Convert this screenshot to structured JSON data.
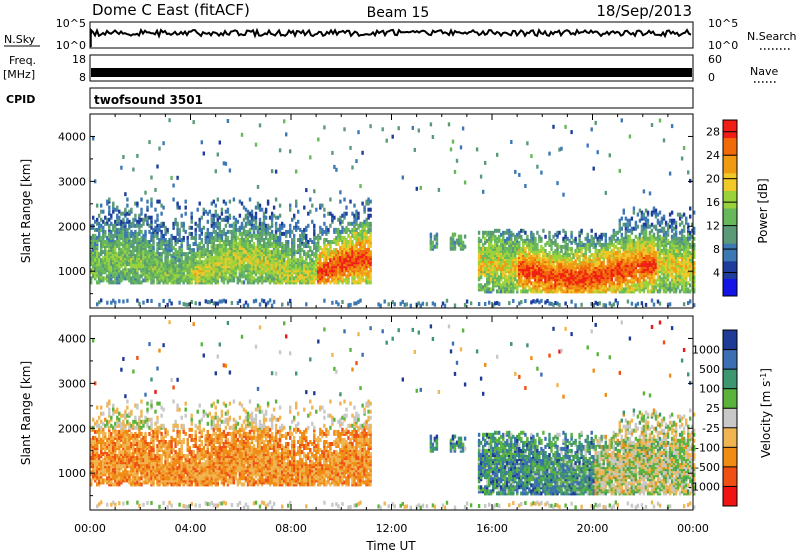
{
  "header": {
    "station": "Dome C East (fitACF)",
    "beam": "Beam 15",
    "date": "18/Sep/2013"
  },
  "strips": {
    "nsky_label": "N.Sky",
    "nsky_top": "10^5",
    "nsky_bottom": "10^0",
    "nsearch_label": "N.Search",
    "nsearch_top": "10^5",
    "nsearch_bottom": "10^0",
    "freq_label": "Freq.",
    "freq_unit": "[MHz]",
    "freq_top": "18",
    "freq_bottom": "8",
    "nave_label": "Nave",
    "nave_top": "60",
    "nave_bottom": "0",
    "cpid_label": "CPID",
    "cpid_value": "twofsound 3501"
  },
  "colors": {
    "power": [
      "#1414e6",
      "#1e3c9c",
      "#3c78b4",
      "#5a9a78",
      "#66b85a",
      "#9ad23c",
      "#f0c828",
      "#f09a14",
      "#f06a0a",
      "#f01e14"
    ],
    "velocity": [
      "#f01414",
      "#f05014",
      "#f08c14",
      "#f0b450",
      "#c8c8c8",
      "#5ab43c",
      "#3c9670",
      "#3c6eb4",
      "#1e3c96"
    ]
  },
  "chart_data": [
    {
      "type": "heatmap",
      "title": "Power",
      "xlabel": "",
      "ylabel": "Slant Range [km]",
      "x_ticks": [
        "00:00",
        "04:00",
        "08:00",
        "12:00",
        "16:00",
        "20:00",
        "00:00"
      ],
      "x_range_hours": [
        0,
        24
      ],
      "y_ticks": [
        1000,
        2000,
        3000,
        4000
      ],
      "y_range_km": [
        180,
        4500
      ],
      "colorbar_label": "Power [dB]",
      "colorbar_ticks": [
        4,
        8,
        12,
        16,
        20,
        24,
        28
      ],
      "colorbar_range": [
        0,
        30
      ],
      "echo_regions": [
        {
          "start_hour": 0.0,
          "end_hour": 11.2,
          "range_km": [
            600,
            2800
          ],
          "level": "medium"
        },
        {
          "start_hour": 9.0,
          "end_hour": 11.2,
          "range_km": [
            700,
            1800
          ],
          "level": "high"
        },
        {
          "start_hour": 15.5,
          "end_hour": 24.0,
          "range_km": [
            500,
            2400
          ],
          "level": "medium"
        },
        {
          "start_hour": 17.0,
          "end_hour": 22.0,
          "range_km": [
            600,
            1400
          ],
          "level": "high"
        }
      ]
    },
    {
      "type": "heatmap",
      "title": "Velocity",
      "xlabel": "Time UT",
      "ylabel": "Slant Range [km]",
      "x_ticks": [
        "00:00",
        "04:00",
        "08:00",
        "12:00",
        "16:00",
        "20:00",
        "00:00"
      ],
      "x_range_hours": [
        0,
        24
      ],
      "y_ticks": [
        1000,
        2000,
        3000,
        4000
      ],
      "y_range_km": [
        180,
        4500
      ],
      "colorbar_label": "Velocity [m s^-1]",
      "colorbar_ticks": [
        "1000",
        "500",
        "100",
        "25",
        "-25",
        "-100",
        "-500",
        "-1000"
      ],
      "colorbar_range": [
        -1000,
        1000
      ],
      "echo_regions": [
        {
          "start_hour": 0.0,
          "end_hour": 11.2,
          "range_km": [
            600,
            2800
          ],
          "direction": "away"
        },
        {
          "start_hour": 15.5,
          "end_hour": 24.0,
          "range_km": [
            500,
            2400
          ],
          "direction": "toward"
        }
      ]
    }
  ]
}
